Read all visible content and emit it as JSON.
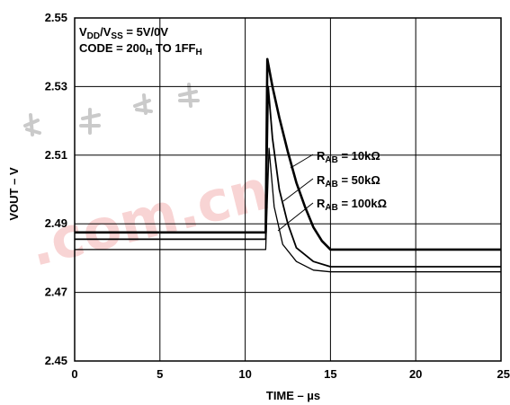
{
  "chart_data": {
    "type": "line",
    "title": "",
    "xlabel": "TIME – µs",
    "ylabel": "VOUT – V",
    "xlim": [
      0,
      25
    ],
    "ylim": [
      2.45,
      2.55
    ],
    "x_ticks": [
      "0",
      "5",
      "10",
      "15",
      "20",
      "25"
    ],
    "y_ticks": [
      "2.55",
      "2.53",
      "2.51",
      "2.49",
      "2.47",
      "2.45"
    ],
    "grid": true,
    "conditions": [
      {
        "main": "V",
        "sub1": "DD",
        "mid": "/V",
        "sub2": "SS",
        "tail": " = 5V/0V"
      },
      {
        "prefix": "CODE = 200",
        "sub1": "H",
        "mid": " TO 1FF",
        "sub2": "H"
      }
    ],
    "series": [
      {
        "name": "RAB = 10kΩ",
        "label": {
          "main": "R",
          "sub": "AB",
          "tail": " = 10kΩ"
        },
        "x": [
          0,
          11.2,
          11.3,
          11.6,
          12,
          12.5,
          13,
          13.5,
          14,
          14.5,
          15,
          16,
          25
        ],
        "y": [
          2.4875,
          2.4875,
          2.538,
          2.53,
          2.521,
          2.511,
          2.502,
          2.495,
          2.489,
          2.485,
          2.4825,
          2.4825,
          2.4825
        ]
      },
      {
        "name": "RAB = 50kΩ",
        "label": {
          "main": "R",
          "sub": "AB",
          "tail": " = 50kΩ"
        },
        "x": [
          0,
          11.2,
          11.35,
          11.6,
          12,
          12.5,
          13,
          14,
          15,
          25
        ],
        "y": [
          2.4855,
          2.4855,
          2.53,
          2.515,
          2.5,
          2.49,
          2.483,
          2.479,
          2.4775,
          2.4775
        ]
      },
      {
        "name": "RAB = 100kΩ",
        "label": {
          "main": "R",
          "sub": "AB",
          "tail": " = 100kΩ"
        },
        "x": [
          0,
          11.2,
          11.4,
          11.7,
          12.2,
          13,
          14,
          15,
          25
        ],
        "y": [
          2.4825,
          2.4825,
          2.512,
          2.495,
          2.484,
          2.479,
          2.4765,
          2.476,
          2.476
        ]
      }
    ],
    "watermark": ".com.cn"
  }
}
